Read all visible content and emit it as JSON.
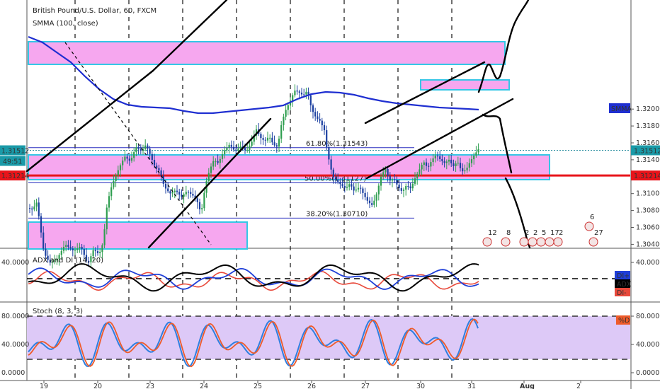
{
  "chart_data": [
    {
      "type": "candlestick",
      "title": "British Pound/U.S. Dollar, 60, FXCM",
      "indicator_label": "SMMA (100, close)",
      "ylim": [
        1.3031,
        1.3227
      ],
      "y_ticks": [
        "1.32000",
        "1.31800",
        "1.31600",
        "1.31400",
        "1.31000",
        "1.30800",
        "1.30600",
        "1.30400"
      ],
      "x_ticks": [
        "19",
        "20",
        "23",
        "24",
        "25",
        "26",
        "27",
        "30",
        "31",
        "Aug",
        "2"
      ],
      "current_price": "1.31512",
      "countdown": "49:51",
      "hline_price": "1.31214",
      "smma_tag": "SMMA",
      "fib_levels": [
        {
          "label": "61.80%(1.31543)",
          "value": 1.31543
        },
        {
          "label": "50.00%(1.31127)",
          "value": 1.31127
        },
        {
          "label": "38.20%(1.30710)",
          "value": 1.3071
        }
      ],
      "event_labels": [
        "12",
        "8",
        "2",
        "2",
        "5",
        "17",
        "2",
        "6",
        "27"
      ]
    },
    {
      "type": "line",
      "title": "ADX and DI (14, 20)",
      "y_ticks": [
        "40.0000"
      ],
      "legend": [
        "DI+",
        "ADX",
        "DI-"
      ]
    },
    {
      "type": "line",
      "title": "Stoch (8, 3, 3)",
      "y_ticks": [
        "80.0000",
        "40.0000",
        "0.0000"
      ],
      "legend": [
        "%D"
      ]
    }
  ],
  "colors": {
    "bull": "#2e9e4f",
    "bear": "#1b3fa0",
    "smma": "#1f2fd1",
    "hline": "#e8141a",
    "zone_fill": "#f6a7ef",
    "zone_stroke": "#35c7e6",
    "fib": "#2a2fbf",
    "diplus": "#1f3fd8",
    "diminus": "#e8493b",
    "adx": "#000000",
    "stoch_k": "#2f7fe0",
    "stoch_d": "#ef5b2a",
    "stoch_band": "#ddc9f7"
  }
}
